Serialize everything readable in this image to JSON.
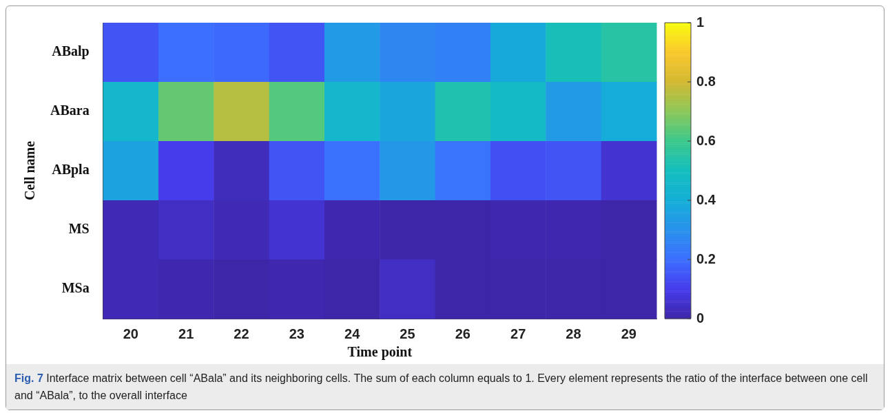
{
  "chart_data": {
    "type": "heatmap",
    "xlabel": "Time point",
    "ylabel": "Cell name",
    "categories": [
      "20",
      "21",
      "22",
      "23",
      "24",
      "25",
      "26",
      "27",
      "28",
      "29"
    ],
    "y_categories": [
      "ABalp",
      "ABara",
      "ABpla",
      "MS",
      "MSa"
    ],
    "cells": [
      [
        0.15,
        0.2,
        0.19,
        0.15,
        0.33,
        0.27,
        0.25,
        0.38,
        0.51,
        0.55
      ],
      [
        0.45,
        0.65,
        0.76,
        0.63,
        0.45,
        0.37,
        0.53,
        0.47,
        0.33,
        0.39
      ],
      [
        0.36,
        0.1,
        0.03,
        0.15,
        0.21,
        0.32,
        0.22,
        0.14,
        0.15,
        0.06
      ],
      [
        0.02,
        0.04,
        0.02,
        0.06,
        0.01,
        0,
        0,
        0.01,
        0.01,
        0
      ],
      [
        0.02,
        0.01,
        0,
        0.01,
        0,
        0.04,
        0,
        0,
        0,
        0
      ]
    ],
    "clim": [
      0,
      1
    ],
    "cticks": [
      0,
      0.2,
      0.4,
      0.6,
      0.8,
      1
    ],
    "annotations": [
      "Fig. 7 Interface matrix between cell “ABala” and its neighboring cells. The sum of each column equals to 1. Every element represents the ratio of the interface between one cell and “ABala”, to the overall interface"
    ]
  }
}
